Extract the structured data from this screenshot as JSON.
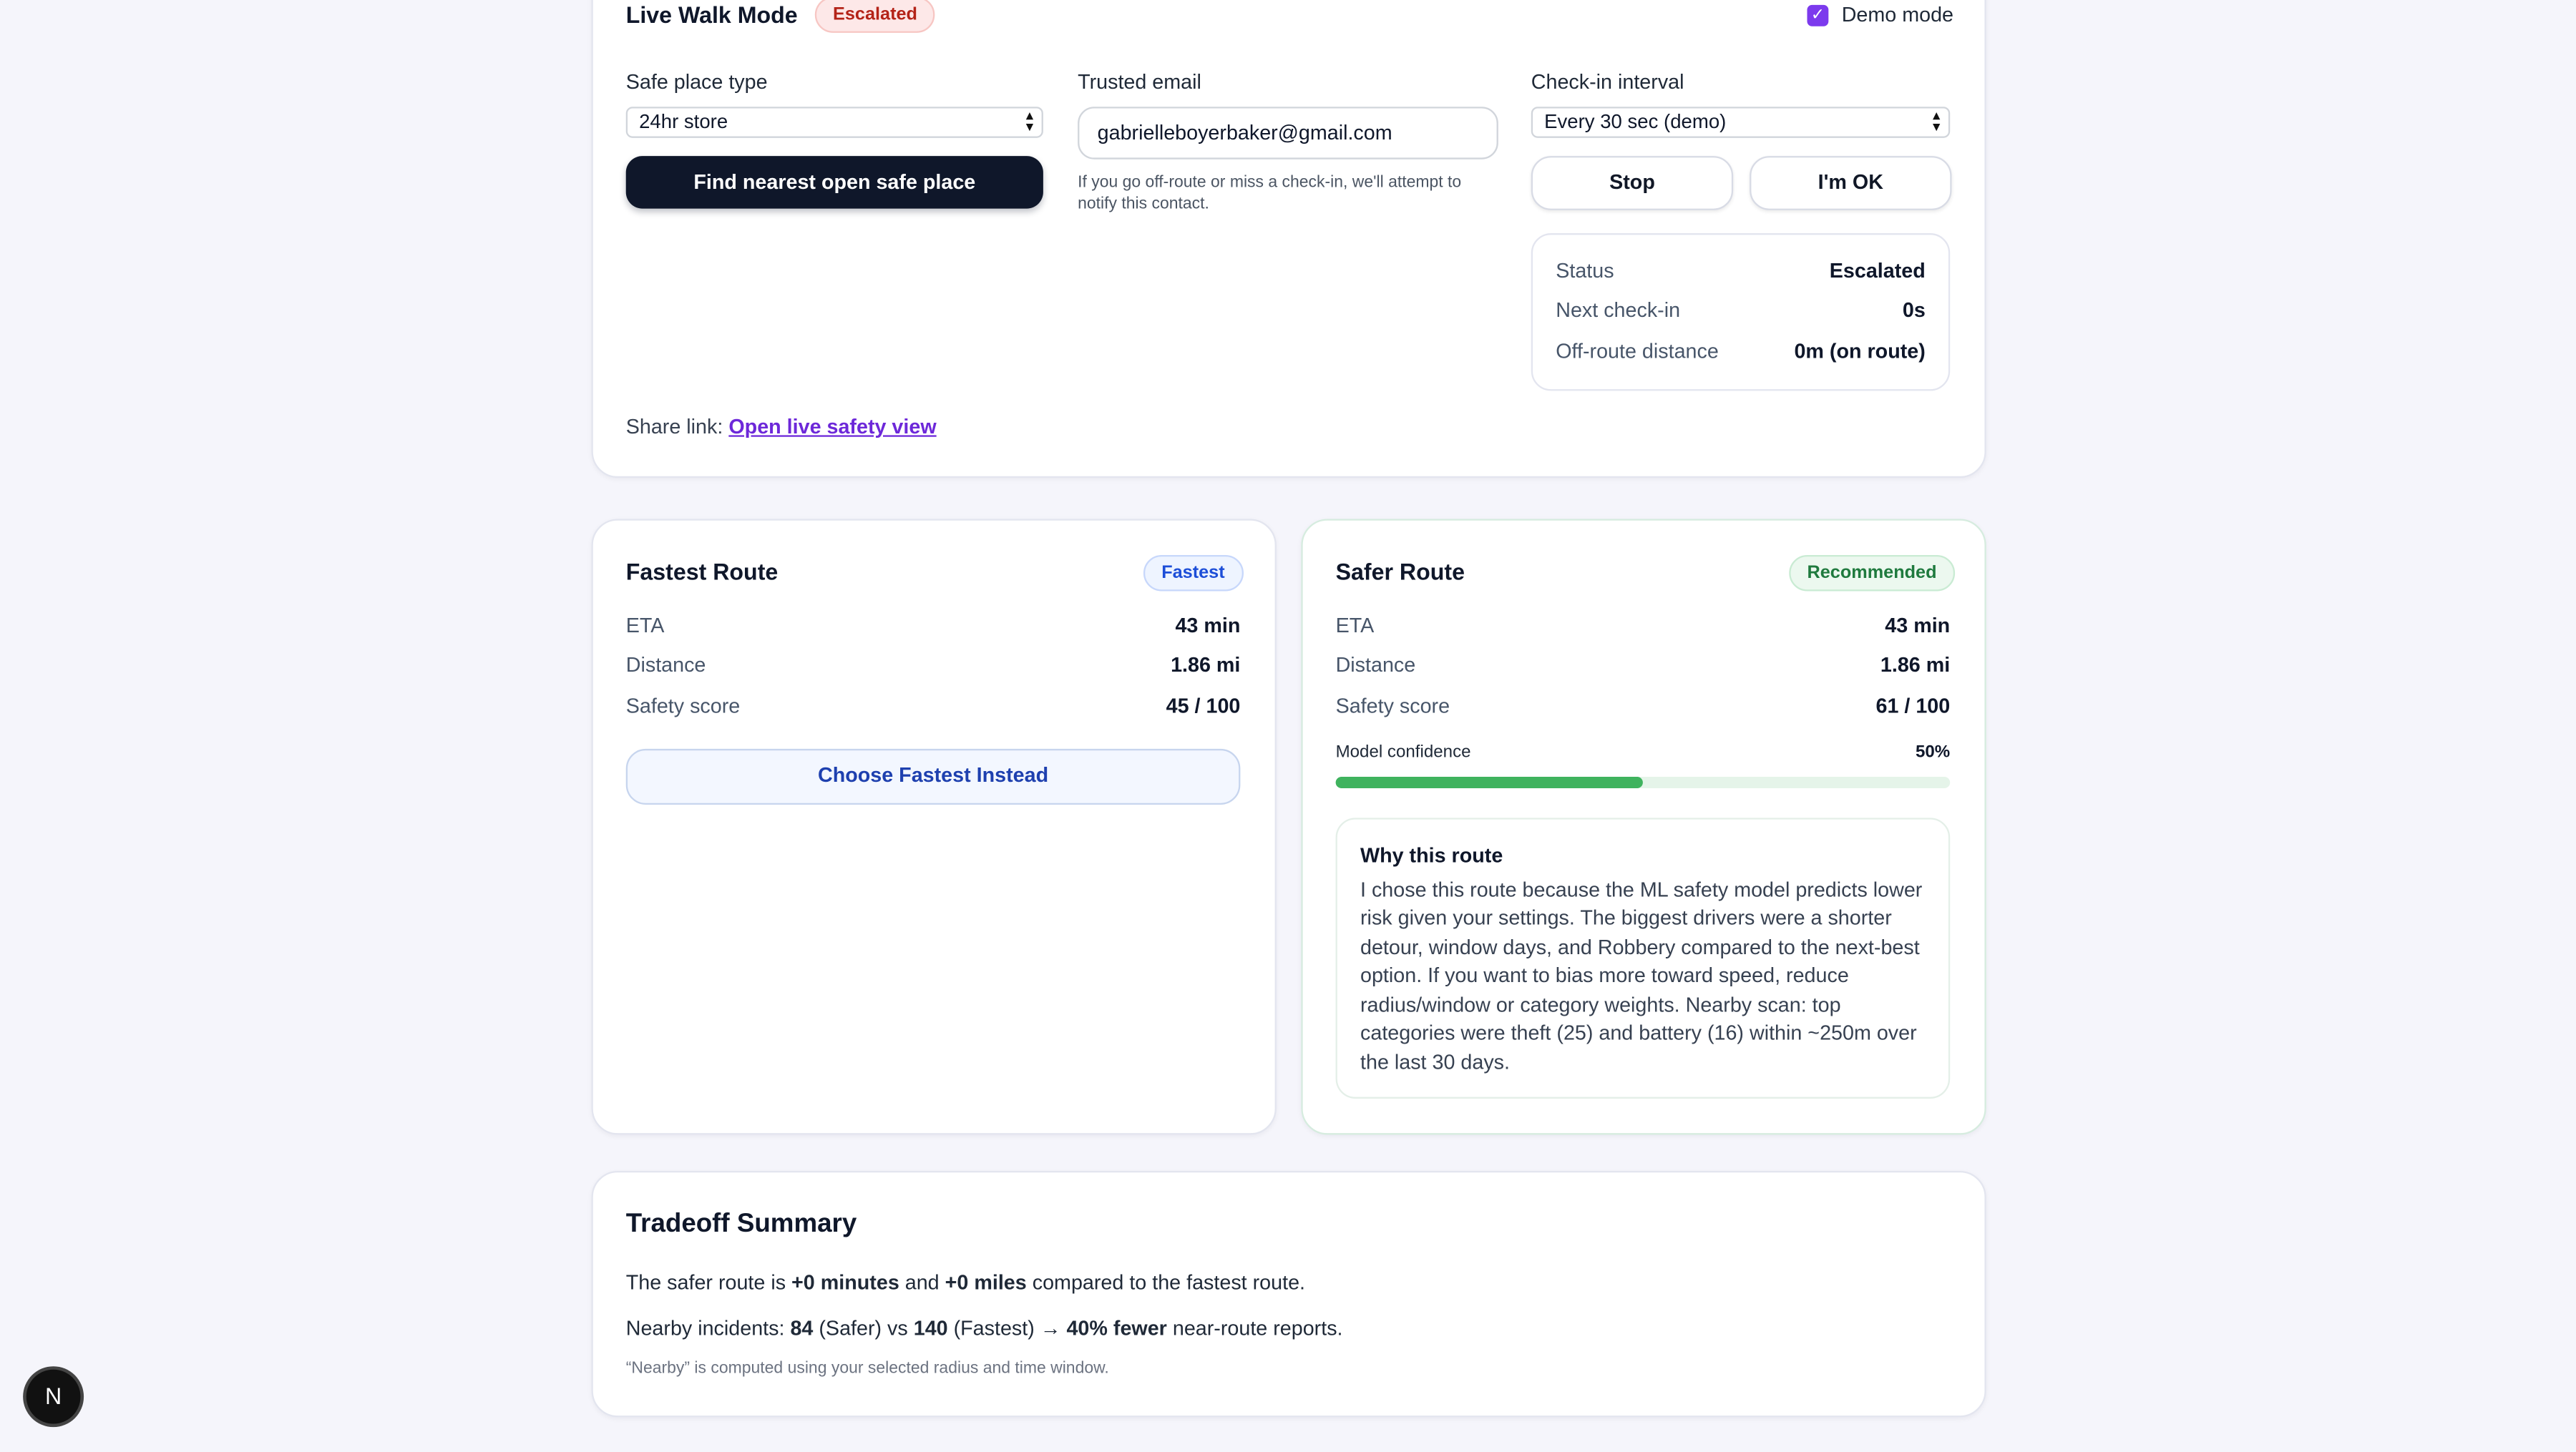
{
  "live_walk": {
    "title": "Live Walk Mode",
    "badge": "Escalated",
    "demo_mode_label": "Demo mode",
    "demo_mode_checked": true,
    "safe_place_label": "Safe place type",
    "safe_place_value": "24hr store",
    "find_button": "Find nearest open safe place",
    "trusted_email_label": "Trusted email",
    "trusted_email_value": "gabrielleboyerbaker@gmail.com",
    "trusted_email_hint": "If you go off-route or miss a check-in, we'll attempt to notify this contact.",
    "checkin_label": "Check-in interval",
    "checkin_value": "Every 30 sec (demo)",
    "stop_button": "Stop",
    "ok_button": "I'm OK",
    "status": [
      {
        "key": "Status",
        "value": "Escalated"
      },
      {
        "key": "Next check-in",
        "value": "0s"
      },
      {
        "key": "Off-route distance",
        "value": "0m (on route)"
      }
    ],
    "share_label": "Share link:",
    "share_link": "Open live safety view"
  },
  "fastest": {
    "title": "Fastest Route",
    "badge": "Fastest",
    "metrics": [
      {
        "key": "ETA",
        "value": "43 min"
      },
      {
        "key": "Distance",
        "value": "1.86 mi"
      },
      {
        "key": "Safety score",
        "value": "45 / 100"
      }
    ],
    "choose_button": "Choose Fastest Instead"
  },
  "safer": {
    "title": "Safer Route",
    "badge": "Recommended",
    "metrics": [
      {
        "key": "ETA",
        "value": "43 min"
      },
      {
        "key": "Distance",
        "value": "1.86 mi"
      },
      {
        "key": "Safety score",
        "value": "61 / 100"
      }
    ],
    "confidence_label": "Model confidence",
    "confidence_value": "50%",
    "confidence_fraction": 0.5,
    "why_title": "Why this route",
    "why_text": "I chose this route because the ML safety model predicts lower risk given your settings. The biggest drivers were a shorter detour, window days, and Robbery compared to the next-best option. If you want to bias more toward speed, reduce radius/window or category weights. Nearby scan: top categories were theft (25) and battery (16) within ~250m over the last 30 days."
  },
  "tradeoff": {
    "title": "Tradeoff Summary",
    "line1": {
      "p1": "The safer route is ",
      "minutes": "+0 minutes",
      "p2": " and ",
      "miles": "+0 miles",
      "p3": " compared to the fastest route."
    },
    "line2": {
      "p1": "Nearby incidents: ",
      "safer_count": "84",
      "p2": " (Safer) vs ",
      "fastest_count": "140",
      "p3": " (Fastest) → ",
      "fewer": "40% fewer",
      "p4": " near-route reports."
    },
    "footnote": "“Nearby” is computed using your selected radius and time window."
  },
  "dev_indicator": "N"
}
